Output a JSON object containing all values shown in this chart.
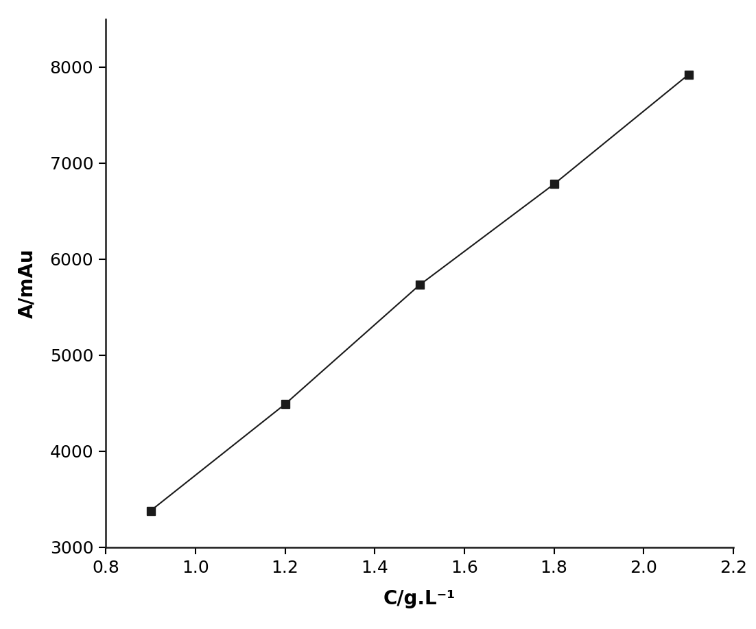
{
  "x": [
    0.9,
    1.2,
    1.5,
    1.8,
    2.1
  ],
  "y": [
    3380,
    4490,
    5730,
    6780,
    7920
  ],
  "xlim": [
    0.8,
    2.2
  ],
  "ylim": [
    3000,
    8500
  ],
  "xticks": [
    0.8,
    1.0,
    1.2,
    1.4,
    1.6,
    1.8,
    2.0,
    2.2
  ],
  "yticks": [
    3000,
    4000,
    5000,
    6000,
    7000,
    8000
  ],
  "xlabel": "C/g.L⁻¹",
  "ylabel": "A/mAu",
  "marker": "s",
  "marker_color": "#1a1a1a",
  "marker_size": 9,
  "line_color": "#1a1a1a",
  "line_width": 1.5,
  "background_color": "#ffffff",
  "tick_fontsize": 18,
  "label_fontsize": 20
}
